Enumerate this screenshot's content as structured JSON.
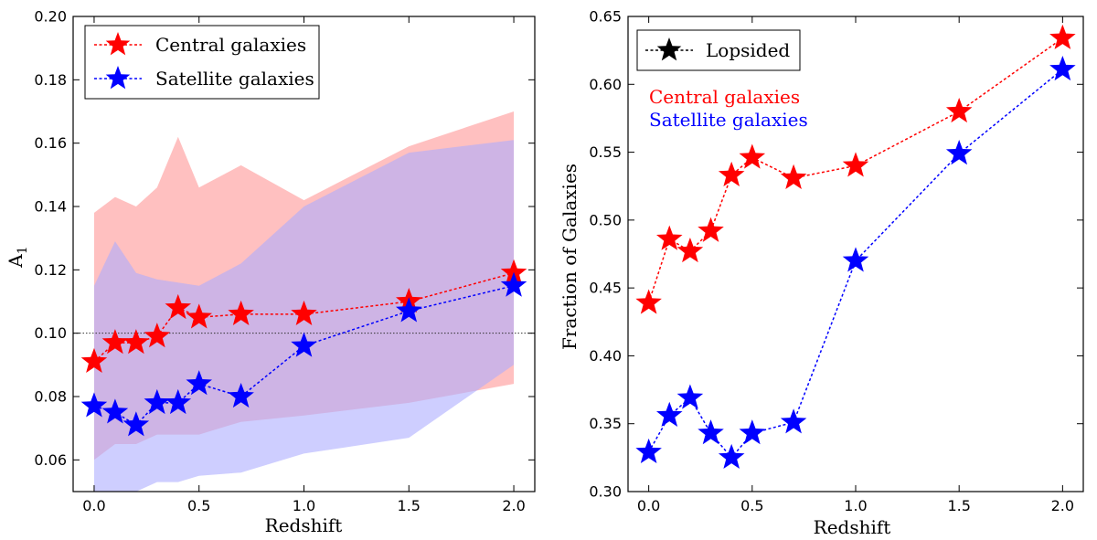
{
  "chart_data": [
    {
      "type": "line",
      "panel": "left",
      "xlabel": "Redshift",
      "ylabel": "A",
      "ylabel_subscript": "1",
      "xlim": [
        -0.1,
        2.1
      ],
      "ylim": [
        0.05,
        0.2
      ],
      "xticks": [
        0.0,
        0.5,
        1.0,
        1.5,
        2.0
      ],
      "xtick_labels": [
        "0.0",
        "0.5",
        "1.0",
        "1.5",
        "2.0"
      ],
      "yticks": [
        0.06,
        0.08,
        0.1,
        0.12,
        0.14,
        0.16,
        0.18,
        0.2
      ],
      "ytick_labels": [
        "0.06",
        "0.08",
        "0.10",
        "0.12",
        "0.14",
        "0.16",
        "0.18",
        "0.20"
      ],
      "reference_line": 0.1,
      "legend": {
        "location": "upper-left",
        "entries": [
          "Central galaxies",
          "Satellite galaxies"
        ]
      },
      "x": [
        0.0,
        0.1,
        0.2,
        0.3,
        0.4,
        0.5,
        0.7,
        1.0,
        1.5,
        2.0
      ],
      "series": [
        {
          "name": "Central galaxies",
          "color": "#ff0000",
          "band_color": "#ff9a9a",
          "values": [
            0.091,
            0.097,
            0.097,
            0.099,
            0.108,
            0.105,
            0.106,
            0.106,
            0.11,
            0.119
          ],
          "band_upper": [
            0.138,
            0.143,
            0.14,
            0.146,
            0.162,
            0.146,
            0.153,
            0.142,
            0.159,
            0.17
          ],
          "band_lower": [
            0.06,
            0.065,
            0.065,
            0.068,
            0.068,
            0.068,
            0.072,
            0.074,
            0.078,
            0.084
          ]
        },
        {
          "name": "Satellite galaxies",
          "color": "#0000ff",
          "band_color": "#aaaaff",
          "values": [
            0.077,
            0.075,
            0.071,
            0.078,
            0.078,
            0.084,
            0.08,
            0.096,
            0.107,
            0.115
          ],
          "band_upper": [
            0.115,
            0.129,
            0.119,
            0.117,
            0.116,
            0.115,
            0.122,
            0.14,
            0.157,
            0.161
          ],
          "band_lower": [
            0.05,
            0.05,
            0.05,
            0.053,
            0.053,
            0.055,
            0.056,
            0.062,
            0.067,
            0.09
          ]
        }
      ]
    },
    {
      "type": "line",
      "panel": "right",
      "xlabel": "Redshift",
      "ylabel": "Fraction of Galaxies",
      "xlim": [
        -0.1,
        2.1
      ],
      "ylim": [
        0.3,
        0.65
      ],
      "xticks": [
        0.0,
        0.5,
        1.0,
        1.5,
        2.0
      ],
      "xtick_labels": [
        "0.0",
        "0.5",
        "1.0",
        "1.5",
        "2.0"
      ],
      "yticks": [
        0.3,
        0.35,
        0.4,
        0.45,
        0.5,
        0.55,
        0.6,
        0.65
      ],
      "ytick_labels": [
        "0.30",
        "0.35",
        "0.40",
        "0.45",
        "0.50",
        "0.55",
        "0.60",
        "0.65"
      ],
      "legend": {
        "location": "upper-left",
        "entries": [
          "Lopsided"
        ]
      },
      "annotations": [
        "Central galaxies",
        "Satellite galaxies"
      ],
      "x": [
        0.0,
        0.1,
        0.2,
        0.3,
        0.4,
        0.5,
        0.7,
        1.0,
        1.5,
        2.0
      ],
      "series": [
        {
          "name": "Central galaxies",
          "color": "#ff0000",
          "values": [
            0.439,
            0.486,
            0.477,
            0.492,
            0.533,
            0.546,
            0.531,
            0.54,
            0.58,
            0.634
          ]
        },
        {
          "name": "Satellite galaxies",
          "color": "#0000ff",
          "values": [
            0.329,
            0.356,
            0.369,
            0.343,
            0.325,
            0.343,
            0.351,
            0.47,
            0.549,
            0.611
          ]
        }
      ]
    }
  ]
}
